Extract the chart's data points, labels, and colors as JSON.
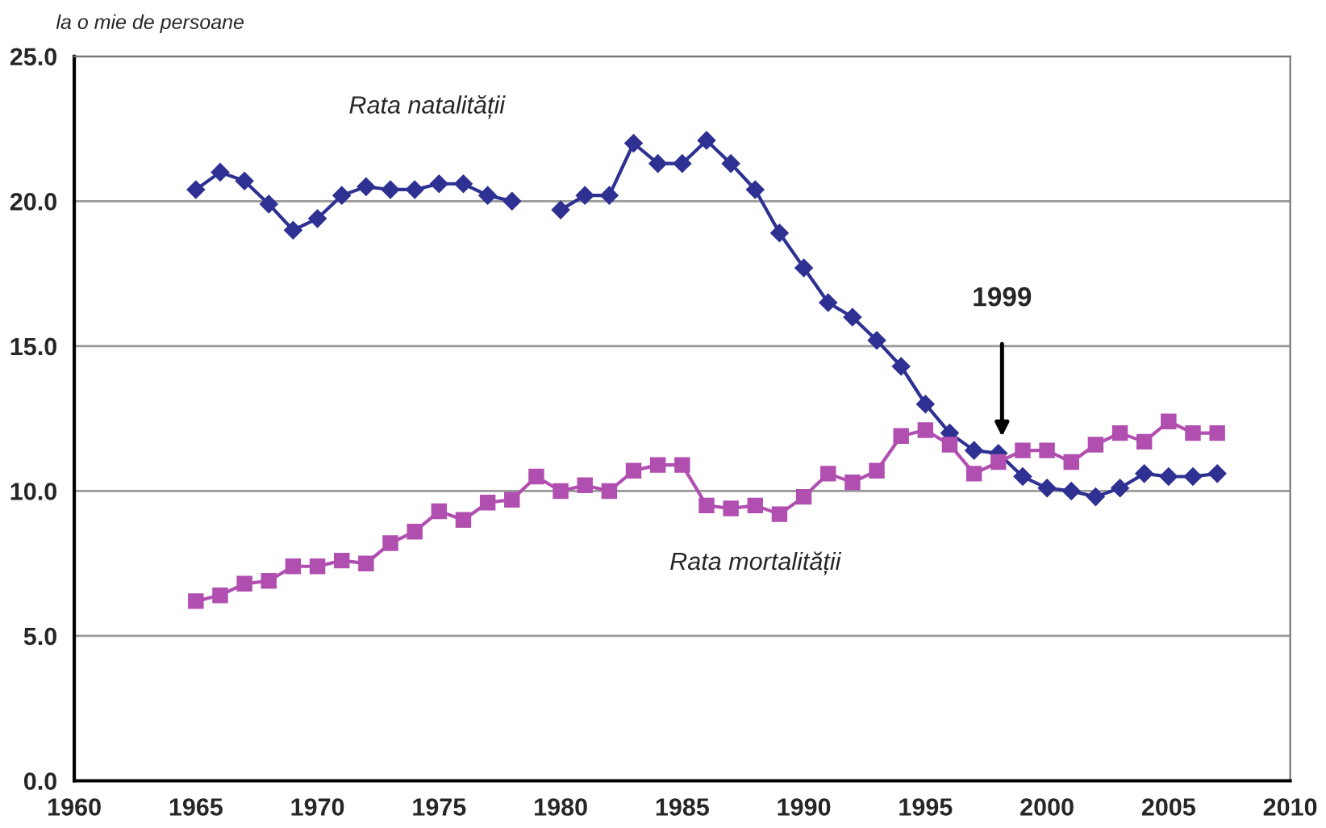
{
  "chart_data": {
    "type": "line",
    "ylabel": "la o mie de persoane",
    "x": [
      1965,
      1966,
      1967,
      1968,
      1969,
      1970,
      1971,
      1972,
      1973,
      1974,
      1975,
      1976,
      1977,
      1978,
      1979,
      1980,
      1981,
      1982,
      1983,
      1984,
      1985,
      1986,
      1987,
      1988,
      1989,
      1990,
      1991,
      1992,
      1993,
      1994,
      1995,
      1996,
      1997,
      1998,
      1999,
      2000,
      2001,
      2002,
      2003,
      2004,
      2005,
      2006,
      2007
    ],
    "series": [
      {
        "name": "Rata natalității",
        "color": "#2e3192",
        "marker": "diamond",
        "values": [
          20.4,
          21.0,
          20.7,
          19.9,
          19.0,
          19.4,
          20.2,
          20.5,
          20.4,
          20.4,
          20.6,
          20.6,
          20.2,
          20.0,
          null,
          19.7,
          20.2,
          20.2,
          22.0,
          21.3,
          21.3,
          22.1,
          21.3,
          20.4,
          18.9,
          17.7,
          16.5,
          16.0,
          15.2,
          14.3,
          13.0,
          12.0,
          11.4,
          11.3,
          10.5,
          10.1,
          10.0,
          9.8,
          10.1,
          10.6,
          10.5,
          10.5,
          10.6
        ]
      },
      {
        "name": "Rata mortalității",
        "color": "#b04fb0",
        "marker": "square",
        "values": [
          6.2,
          6.4,
          6.8,
          6.9,
          7.4,
          7.4,
          7.6,
          7.5,
          8.2,
          8.6,
          9.3,
          9.0,
          9.6,
          9.7,
          10.5,
          10.0,
          10.2,
          10.0,
          10.7,
          10.9,
          10.9,
          9.5,
          9.4,
          9.5,
          9.2,
          9.8,
          10.6,
          10.3,
          10.7,
          11.9,
          12.1,
          11.6,
          10.6,
          11.0,
          11.4,
          11.4,
          11.0,
          11.6,
          12.0,
          11.7,
          12.4,
          12.0,
          12.0
        ]
      }
    ],
    "xlim": [
      1960,
      2010
    ],
    "xticks": [
      1960,
      1965,
      1970,
      1975,
      1980,
      1985,
      1990,
      1995,
      2000,
      2005,
      2010
    ],
    "ylim": [
      0,
      25
    ],
    "yticks": [
      {
        "value": 0,
        "label": "0.0"
      },
      {
        "value": 5,
        "label": "5.0"
      },
      {
        "value": 10,
        "label": "10.0"
      },
      {
        "value": 15,
        "label": "15.0"
      },
      {
        "value": 20,
        "label": "20.0"
      },
      {
        "value": 25,
        "label": "25.0"
      }
    ],
    "annotations": [
      "1999"
    ],
    "grid": "y",
    "legend": false,
    "line_style": "solid"
  }
}
